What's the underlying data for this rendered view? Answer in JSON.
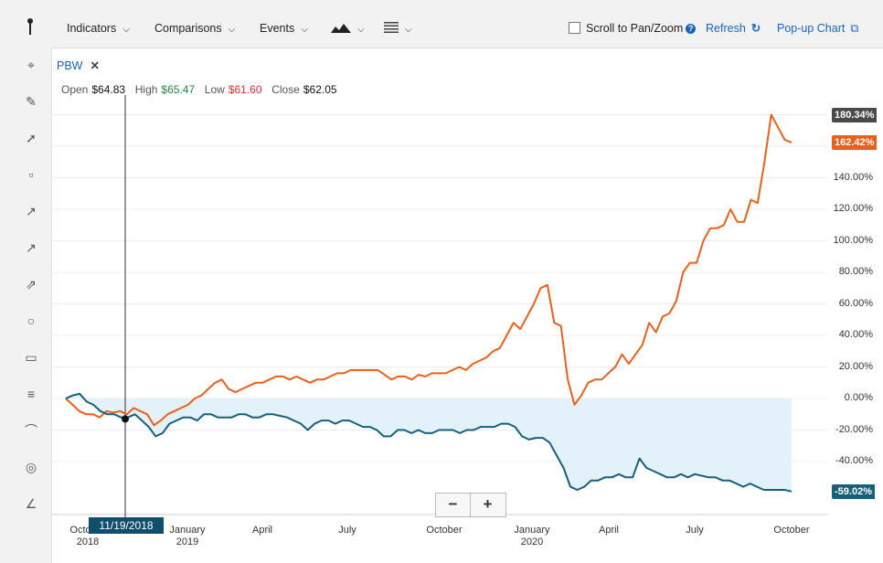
{
  "toolbar": {
    "indicators": "Indicators",
    "comparisons": "Comparisons",
    "events": "Events",
    "scroll_label": "Scroll to Pan/Zoom",
    "refresh": "Refresh",
    "popup": "Pop-up Chart"
  },
  "tab": {
    "symbol": "PBW"
  },
  "ohlc": {
    "open_label": "Open",
    "open": "$64.83",
    "high_label": "High",
    "high": "$65.47",
    "low_label": "Low",
    "low": "$61.60",
    "close_label": "Close",
    "close": "$62.05"
  },
  "crosshair": {
    "date": "11/19/2018"
  },
  "zoom": {
    "minus": "−",
    "plus": "+"
  },
  "colors": {
    "orange": "#e8601c",
    "teal": "#15607a",
    "fill": "#e3f2fa",
    "flag_dark": "#4a4a4a"
  },
  "chart_data": {
    "type": "line",
    "y_unit": "%",
    "ylim": [
      -65,
      190
    ],
    "y_ticks": [
      -40,
      -20,
      0,
      20,
      40,
      60,
      80,
      100,
      120,
      140
    ],
    "y_tick_labels": [
      "-40.00%",
      "-20.00%",
      "0.00%",
      "20.00%",
      "40.00%",
      "60.00%",
      "80.00%",
      "100.00%",
      "120.00%",
      "140.00%"
    ],
    "x_tick_labels": [
      "October 2018",
      "January 2019",
      "April",
      "July",
      "October",
      "January 2020",
      "April",
      "July",
      "October"
    ],
    "flags": [
      {
        "label": "180.34%",
        "value": 180.34,
        "color": "#4a4a4a"
      },
      {
        "label": "162.42%",
        "value": 162.42,
        "color": "#e8601c"
      },
      {
        "label": "-59.02%",
        "value": -59.02,
        "color": "#15607a"
      }
    ],
    "series": [
      {
        "color": "#e8601c",
        "values": [
          0,
          -4,
          -8,
          -10,
          -10,
          -12,
          -8,
          -9,
          -8,
          -10,
          -6,
          -8,
          -10,
          -17,
          -14,
          -10,
          -8,
          -6,
          -4,
          0,
          2,
          6,
          10,
          12,
          6,
          4,
          6,
          8,
          10,
          10,
          12,
          14,
          14,
          12,
          14,
          12,
          10,
          12,
          12,
          14,
          16,
          16,
          18,
          18,
          18,
          18,
          18,
          15,
          12,
          14,
          14,
          12,
          15,
          14,
          16,
          16,
          16,
          18,
          20,
          18,
          22,
          24,
          26,
          30,
          32,
          40,
          48,
          44,
          52,
          60,
          70,
          72,
          48,
          46,
          12,
          -4,
          2,
          10,
          12,
          12,
          16,
          20,
          28,
          22,
          28,
          34,
          48,
          42,
          52,
          54,
          62,
          80,
          86,
          86,
          100,
          108,
          108,
          110,
          120,
          112,
          112,
          126,
          124,
          150,
          180,
          172,
          164,
          162.42
        ]
      },
      {
        "color": "#15607a",
        "values": [
          0,
          2,
          3,
          -2,
          -4,
          -8,
          -10,
          -10,
          -12,
          -12,
          -10,
          -14,
          -18,
          -24,
          -22,
          -16,
          -14,
          -12,
          -12,
          -14,
          -10,
          -10,
          -12,
          -12,
          -12,
          -10,
          -10,
          -12,
          -12,
          -10,
          -10,
          -11,
          -12,
          -14,
          -16,
          -20,
          -16,
          -14,
          -14,
          -16,
          -14,
          -14,
          -16,
          -18,
          -18,
          -20,
          -24,
          -24,
          -20,
          -20,
          -22,
          -20,
          -22,
          -22,
          -20,
          -20,
          -20,
          -22,
          -20,
          -20,
          -18,
          -18,
          -18,
          -16,
          -16,
          -18,
          -24,
          -26,
          -25,
          -25,
          -28,
          -36,
          -44,
          -56,
          -58,
          -56,
          -52,
          -52,
          -50,
          -50,
          -48,
          -50,
          -50,
          -38,
          -44,
          -46,
          -48,
          -50,
          -50,
          -48,
          -50,
          -48,
          -49,
          -50,
          -50,
          -52,
          -52,
          -54,
          -56,
          -54,
          -56,
          -58,
          -58,
          -58,
          -58,
          -59.02
        ]
      }
    ],
    "crosshair_value": -13
  }
}
